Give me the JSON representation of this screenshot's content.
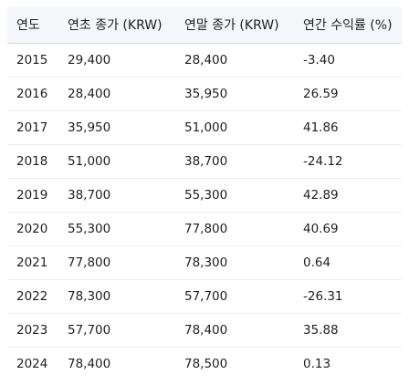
{
  "table": {
    "headers": [
      "연도",
      "연초 종가 (KRW)",
      "연말 종가 (KRW)",
      "연간 수익률 (%)"
    ],
    "rows": [
      [
        "2015",
        "29,400",
        "28,400",
        "-3.40"
      ],
      [
        "2016",
        "28,400",
        "35,950",
        "26.59"
      ],
      [
        "2017",
        "35,950",
        "51,000",
        "41.86"
      ],
      [
        "2018",
        "51,000",
        "38,700",
        "-24.12"
      ],
      [
        "2019",
        "38,700",
        "55,300",
        "42.89"
      ],
      [
        "2020",
        "55,300",
        "77,800",
        "40.69"
      ],
      [
        "2021",
        "77,800",
        "78,300",
        "0.64"
      ],
      [
        "2022",
        "78,300",
        "57,700",
        "-26.31"
      ],
      [
        "2023",
        "57,700",
        "78,400",
        "35.88"
      ],
      [
        "2024",
        "78,400",
        "78,500",
        "0.13"
      ]
    ]
  }
}
